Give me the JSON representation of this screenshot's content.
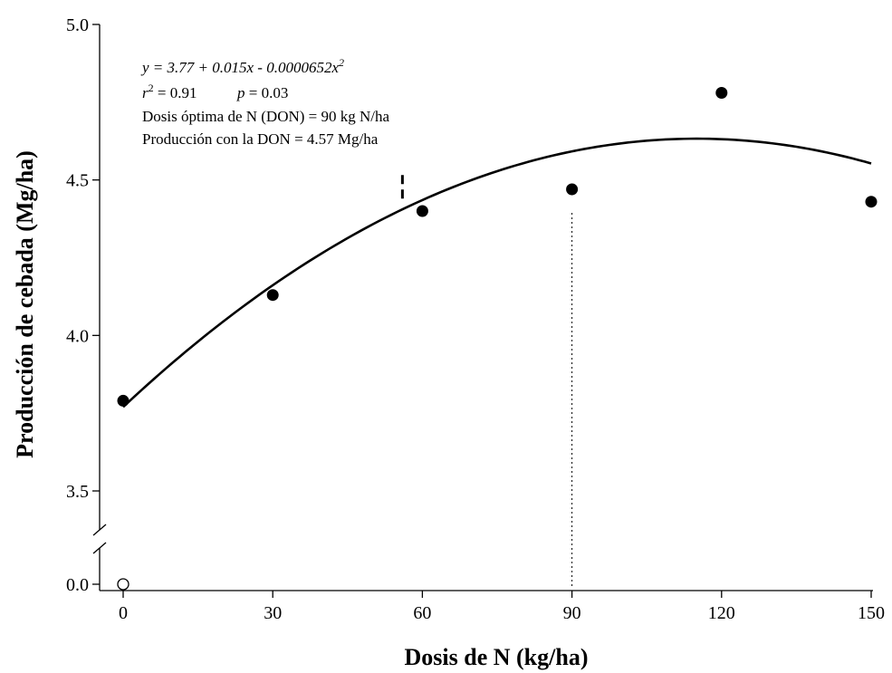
{
  "chart_data": {
    "type": "scatter",
    "xlabel": "Dosis de N (kg/ha)",
    "ylabel": "Producción de cebada (Mg/ha)",
    "xlim": [
      0,
      150
    ],
    "ylim_upper": [
      3.5,
      5.0
    ],
    "ylim_broken_lower": [
      0.0
    ],
    "y_axis_break": true,
    "grid": false,
    "x_ticks": [
      "0",
      "30",
      "60",
      "90",
      "120",
      "150"
    ],
    "y_ticks": [
      "0.0",
      "3.5",
      "4.0",
      "4.5",
      "5.0"
    ],
    "points": [
      {
        "x": 0,
        "y": 3.79
      },
      {
        "x": 30,
        "y": 4.13
      },
      {
        "x": 60,
        "y": 4.4
      },
      {
        "x": 90,
        "y": 4.47
      },
      {
        "x": 120,
        "y": 4.78
      },
      {
        "x": 150,
        "y": 4.43
      }
    ],
    "open_points": [
      {
        "x": 0,
        "y": 0.0
      }
    ],
    "fit": {
      "type": "quadratic",
      "intercept": 3.77,
      "linear": 0.015,
      "quadratic": -6.52e-05,
      "x_range": [
        0,
        150
      ]
    },
    "reference_lines": [
      {
        "style": "dotted",
        "x": 90,
        "y_from": 0.0,
        "y_to": 4.4
      },
      {
        "style": "dashed",
        "x": 56,
        "y_from": 4.44,
        "y_to": 4.53
      }
    ],
    "annotations": {
      "equation": "y = 3.77 + 0.015x - 0.0000652x",
      "equation_sup": "2",
      "r2_prefix": "r",
      "r2_sup": "2",
      "r2_value": " = 0.91",
      "p_label": "p",
      "p_value": " = 0.03",
      "don": "Dosis óptima de N (DON) = 90 kg N/ha",
      "prod": "Producción con la DON = 4.57 Mg/ha"
    }
  }
}
